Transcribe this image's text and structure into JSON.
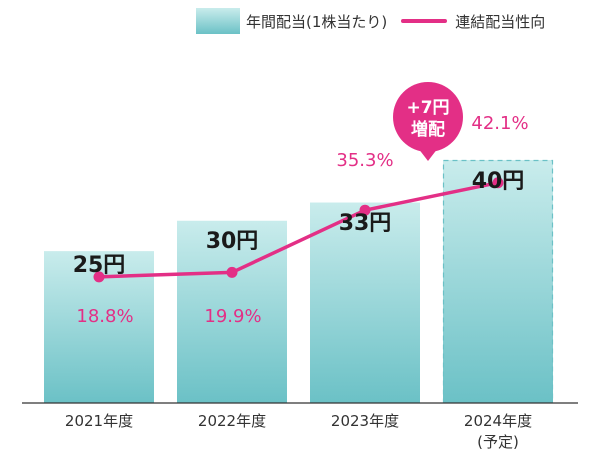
{
  "legend": {
    "bar_label": "年間配当(1株当たり)",
    "line_label": "連結配当性向"
  },
  "chart_data": {
    "type": "bar+line",
    "categories": [
      "2021年度",
      "2022年度",
      "2023年度",
      "2024年度"
    ],
    "category_sublabels": [
      "",
      "",
      "",
      "(予定)"
    ],
    "series": [
      {
        "name": "年間配当(1株当たり)",
        "type": "bar",
        "values": [
          25,
          30,
          33,
          40
        ],
        "labels": [
          "25円",
          "30円",
          "33円",
          "40円"
        ],
        "forecast_index": 3
      },
      {
        "name": "連結配当性向",
        "type": "line",
        "values": [
          18.8,
          19.9,
          35.3,
          42.1
        ],
        "labels": [
          "18.8%",
          "19.9%",
          "35.3%",
          "42.1%"
        ]
      }
    ],
    "annotation": {
      "line1": "+7円",
      "line2": "増配"
    },
    "colors": {
      "bar_top": "#c9ecec",
      "bar_bottom": "#6bc1c6",
      "line": "#e32f86",
      "bubble": "#e32f86",
      "dash": "#6bc1c6"
    }
  }
}
